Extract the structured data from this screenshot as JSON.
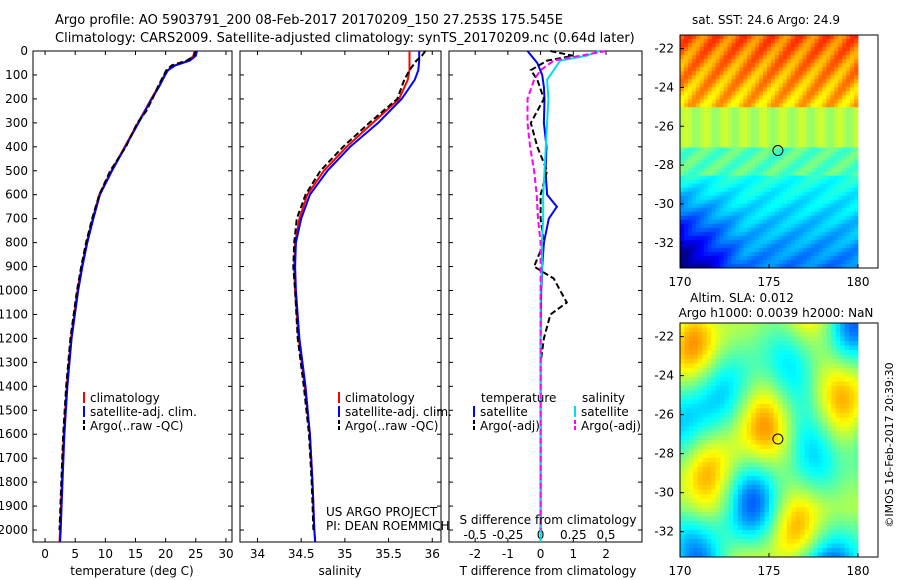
{
  "header": {
    "line1": "Argo profile: AO 5903791_200 08-Feb-2017 20170209_150 27.253S 175.545E",
    "line2": "Climatology: CARS2009. Satellite-adjusted climatology: synTS_20170209.nc (0.64d later)"
  },
  "colors": {
    "climatology": "#ff0000",
    "satellite": "#0000ff",
    "argo": "#000000",
    "sal_satellite": "#00e0e0",
    "sal_argo": "#ff00ff"
  },
  "depth_axis": {
    "ticks": [
      0,
      100,
      200,
      300,
      400,
      500,
      600,
      700,
      800,
      900,
      1000,
      1100,
      1200,
      1300,
      1400,
      1500,
      1600,
      1700,
      1800,
      1900,
      2000
    ],
    "range": [
      0,
      2050
    ]
  },
  "chart_data": [
    {
      "type": "line",
      "xlabel": "temperature (deg C)",
      "xticks": [
        "0",
        "5",
        "10",
        "15",
        "20",
        "25",
        "30"
      ],
      "xlim": [
        -2,
        31
      ],
      "legend": [
        "climatology",
        "satellite-adj. clim.",
        "Argo(..raw -QC)"
      ],
      "legend_placement": "bottom-center",
      "series": [
        {
          "name": "climatology",
          "depth": [
            0,
            20,
            40,
            60,
            80,
            100,
            150,
            200,
            250,
            300,
            400,
            500,
            600,
            700,
            800,
            900,
            1000,
            1200,
            1400,
            1600,
            1800,
            2000,
            2050
          ],
          "values": [
            24.8,
            24.6,
            23.8,
            21.5,
            20.3,
            19.8,
            18.8,
            17.6,
            16.5,
            15.4,
            13.2,
            11.0,
            9.0,
            7.9,
            6.9,
            6.1,
            5.4,
            4.3,
            3.6,
            3.1,
            2.8,
            2.5,
            2.4
          ]
        },
        {
          "name": "satellite-adj. clim.",
          "depth": [
            0,
            20,
            40,
            60,
            80,
            100,
            150,
            200,
            250,
            300,
            400,
            500,
            600,
            700,
            800,
            900,
            1000,
            1200,
            1400,
            1600,
            1800,
            2000,
            2050
          ],
          "values": [
            25.2,
            25.0,
            24.0,
            21.6,
            20.4,
            19.9,
            18.9,
            17.7,
            16.6,
            15.5,
            13.3,
            11.1,
            9.1,
            8.0,
            7.0,
            6.2,
            5.5,
            4.4,
            3.7,
            3.2,
            2.9,
            2.6,
            2.5
          ]
        },
        {
          "name": "Argo(..raw -QC)",
          "depth": [
            0,
            20,
            40,
            60,
            80,
            100,
            150,
            200,
            250,
            300,
            400,
            500,
            600,
            700,
            800,
            900,
            1000,
            1200,
            1400,
            1600,
            1800,
            2000
          ],
          "values": [
            25.0,
            24.7,
            23.5,
            21.0,
            20.1,
            19.7,
            18.7,
            17.8,
            16.8,
            15.3,
            13.4,
            10.8,
            9.0,
            7.8,
            6.8,
            6.0,
            5.3,
            4.2,
            3.5,
            3.0,
            2.7,
            2.4
          ]
        }
      ]
    },
    {
      "type": "line",
      "xlabel": "salinity",
      "xticks": [
        "34",
        "34.5",
        "35",
        "35.5",
        "36"
      ],
      "xlim": [
        33.8,
        36.1
      ],
      "legend": [
        "climatology",
        "satellite-adj. clim.",
        "Argo(..raw -QC)"
      ],
      "legend_placement": "bottom-center",
      "annotation": [
        "US ARGO PROJECT",
        "PI: DEAN ROEMMICH"
      ],
      "series": [
        {
          "name": "climatology",
          "depth": [
            0,
            40,
            80,
            120,
            200,
            300,
            400,
            500,
            600,
            700,
            800,
            900,
            1000,
            1200,
            1400,
            1600,
            1800,
            2000,
            2050
          ],
          "values": [
            35.74,
            35.74,
            35.74,
            35.72,
            35.62,
            35.32,
            35.02,
            34.76,
            34.57,
            34.48,
            34.43,
            34.42,
            34.43,
            34.47,
            34.54,
            34.6,
            34.63,
            34.65,
            34.66
          ]
        },
        {
          "name": "satellite-adj. clim.",
          "depth": [
            0,
            40,
            80,
            120,
            200,
            300,
            400,
            500,
            600,
            700,
            800,
            900,
            1000,
            1200,
            1400,
            1600,
            1800,
            2000,
            2050
          ],
          "values": [
            35.85,
            35.85,
            35.84,
            35.8,
            35.65,
            35.38,
            35.06,
            34.8,
            34.6,
            34.5,
            34.44,
            34.43,
            34.44,
            34.48,
            34.55,
            34.6,
            34.63,
            34.65,
            34.66
          ]
        },
        {
          "name": "Argo(..raw -QC)",
          "depth": [
            0,
            20,
            40,
            80,
            120,
            200,
            300,
            400,
            500,
            600,
            700,
            800,
            900,
            1000,
            1200,
            1400,
            1600,
            1800,
            2000
          ],
          "values": [
            35.92,
            35.88,
            35.82,
            35.74,
            35.68,
            35.6,
            35.28,
            34.98,
            34.72,
            34.55,
            34.45,
            34.42,
            34.41,
            34.43,
            34.46,
            34.53,
            34.59,
            34.62,
            34.64
          ]
        }
      ]
    },
    {
      "type": "line",
      "xlabel": "T difference from climatology",
      "x2label": "S difference from climatology",
      "xticks": [
        "-2",
        "-1",
        "0",
        "1",
        "2"
      ],
      "x2ticks": [
        "-0.5",
        "-0.25",
        "0",
        "0.25",
        "0.5"
      ],
      "xlim": [
        -2.8,
        3.1
      ],
      "legend_titles": [
        "temperature",
        "salinity"
      ],
      "legend": [
        "satellite",
        "Argo(-adj)",
        "satellite",
        "Argo(-adj)"
      ],
      "legend_placement": "bottom",
      "series": [
        {
          "name": "temperature satellite",
          "depth": [
            0,
            50,
            100,
            150,
            200,
            300,
            400,
            500,
            600,
            650,
            700,
            800,
            900,
            1000,
            1200,
            1500,
            1800,
            2000,
            2050
          ],
          "values": [
            -0.4,
            -0.1,
            0.05,
            0.1,
            0.12,
            0.1,
            0.18,
            0.15,
            0.2,
            0.5,
            0.25,
            0.1,
            0.05,
            0.02,
            0.0,
            0.0,
            0.0,
            0.0,
            0.0
          ]
        },
        {
          "name": "temperature Argo(-adj)",
          "depth": [
            0,
            20,
            40,
            80,
            120,
            200,
            300,
            400,
            500,
            600,
            700,
            800,
            900,
            950,
            1000,
            1050,
            1100,
            1200,
            1300,
            1500,
            1800,
            2000
          ],
          "values": [
            0.3,
            1.0,
            0.2,
            -0.3,
            -0.1,
            0.1,
            -0.3,
            -0.1,
            0.2,
            0.0,
            0.0,
            0.1,
            -0.2,
            0.4,
            0.6,
            0.8,
            0.3,
            0.1,
            0.0,
            0.0,
            0.0,
            0.0
          ]
        },
        {
          "name": "salinity satellite",
          "depth": [
            0,
            20,
            40,
            80,
            120,
            200,
            300,
            400,
            500,
            600,
            700,
            800,
            900,
            1000,
            1200,
            1500,
            1800,
            2000,
            2050
          ],
          "values": [
            0.45,
            0.35,
            0.15,
            0.1,
            0.05,
            0.06,
            0.05,
            0.04,
            0.03,
            0.02,
            0.02,
            0.01,
            0.01,
            0.0,
            0.0,
            0.0,
            0.0,
            0.0,
            0.0
          ]
        },
        {
          "name": "salinity Argo(-adj)",
          "depth": [
            0,
            20,
            40,
            80,
            120,
            200,
            300,
            400,
            500,
            600,
            700,
            800,
            900,
            1000,
            1200,
            1500,
            1800,
            2000
          ],
          "values": [
            0.5,
            0.3,
            0.1,
            0.0,
            -0.05,
            -0.1,
            -0.1,
            -0.08,
            -0.05,
            -0.03,
            -0.02,
            0.0,
            0.0,
            0.0,
            0.0,
            0.0,
            0.0,
            0.0
          ]
        }
      ]
    },
    {
      "type": "heatmap",
      "title": "sat. SST: 24.6  Argo: 24.9",
      "xticks": [
        "170",
        "175",
        "180"
      ],
      "yticks": [
        "-22",
        "-24",
        "-26",
        "-28",
        "-30",
        "-32"
      ],
      "xlim": [
        170,
        180
      ],
      "ylim": [
        -33.3,
        -21.3
      ],
      "marker": [
        175.5,
        -27.25
      ]
    },
    {
      "type": "heatmap",
      "title": [
        "Altim. SLA: 0.012",
        "Argo h1000: 0.0039 h2000: NaN"
      ],
      "xticks": [
        "170",
        "175",
        "180"
      ],
      "yticks": [
        "-22",
        "-24",
        "-26",
        "-28",
        "-30",
        "-32"
      ],
      "xlim": [
        170,
        180
      ],
      "ylim": [
        -33.3,
        -21.3
      ],
      "marker": [
        175.5,
        -27.25
      ]
    }
  ],
  "footer": {
    "timestamp": "©IMOS 16-Feb-2017 20:39:30"
  }
}
